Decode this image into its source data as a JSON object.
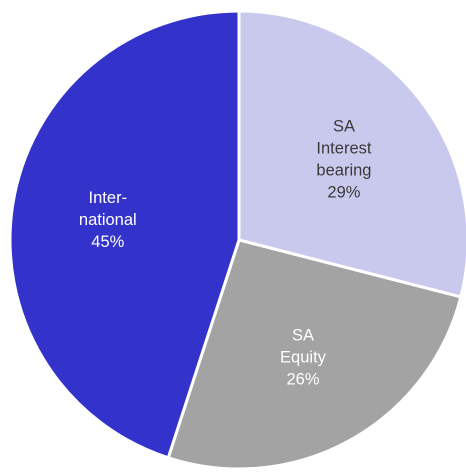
{
  "chart_data": {
    "type": "pie",
    "slices": [
      {
        "label_lines": [
          "SA",
          "Interest",
          "bearing"
        ],
        "percent_text": "29%",
        "value": 29,
        "color": "#c9c9ee",
        "text_color": "#3a3a3a"
      },
      {
        "label_lines": [
          "SA",
          "Equity"
        ],
        "percent_text": "26%",
        "value": 26,
        "color": "#a3a3a3",
        "text_color": "#ffffff"
      },
      {
        "label_lines": [
          "Inter-",
          "national"
        ],
        "percent_text": "45%",
        "value": 45,
        "color": "#3333cc",
        "text_color": "#ffffff"
      }
    ],
    "start": "12 o'clock",
    "direction": "clockwise",
    "slice_border_color": "#ffffff",
    "legend": "none"
  }
}
